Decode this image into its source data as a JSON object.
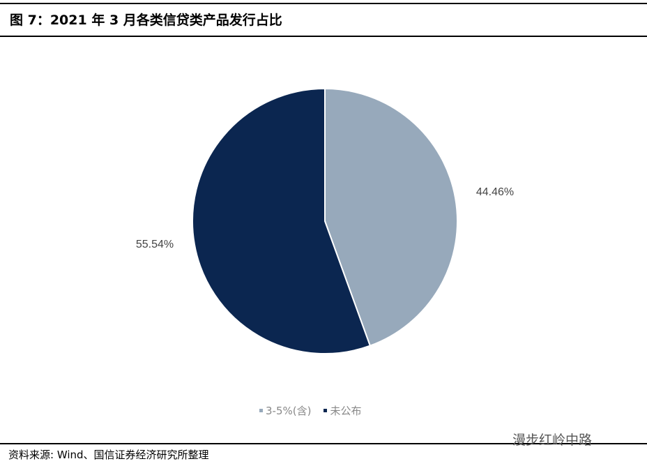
{
  "title": "图 7：2021 年 3 月各类信贷类产品发行占比",
  "chart_data": {
    "type": "pie",
    "title": "",
    "start_angle": "12 o'clock, clockwise",
    "slices": [
      {
        "name": "3-5%(含)",
        "value": 44.46,
        "label": "44.46%",
        "color": "#97a9bb"
      },
      {
        "name": "未公布",
        "value": 55.54,
        "label": "55.54%",
        "color": "#0b2650"
      }
    ],
    "legend_position": "bottom"
  },
  "source": "资料来源: Wind、国信证券经济研究所整理",
  "watermark": "漫步红岭中路"
}
